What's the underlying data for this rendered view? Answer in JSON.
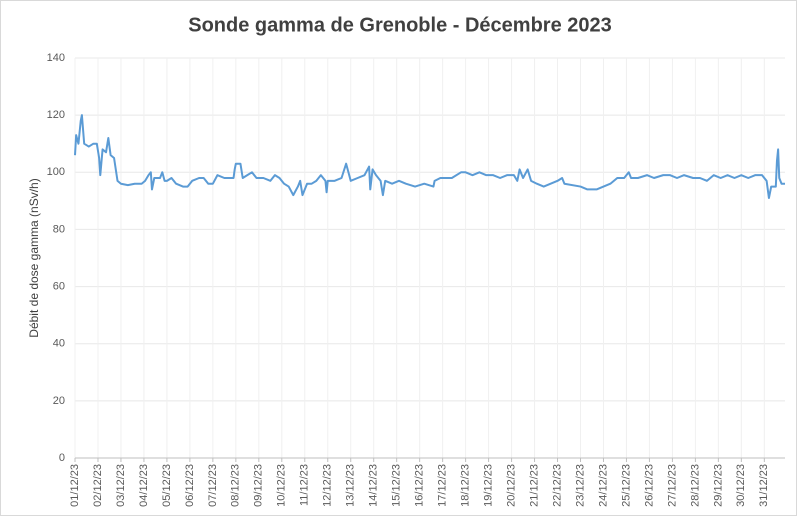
{
  "chart_data": {
    "type": "line",
    "title": "Sonde gamma de Grenoble - Décembre 2023",
    "y_label": "Débit de dose gamma (nSv/h)",
    "x": [
      0,
      0.05,
      0.15,
      0.25,
      0.3,
      0.4,
      0.6,
      0.8,
      0.95,
      1.05,
      1.1,
      1.2,
      1.35,
      1.45,
      1.55,
      1.7,
      1.85,
      2.0,
      2.3,
      2.6,
      2.9,
      3.05,
      3.2,
      3.3,
      3.35,
      3.45,
      3.7,
      3.8,
      3.9,
      4.0,
      4.2,
      4.4,
      4.7,
      4.9,
      5.1,
      5.4,
      5.6,
      5.8,
      6.0,
      6.2,
      6.5,
      6.9,
      6.95,
      7.0,
      7.2,
      7.3,
      7.5,
      7.7,
      7.9,
      8.0,
      8.2,
      8.5,
      8.7,
      8.9,
      9.1,
      9.3,
      9.5,
      9.7,
      9.8,
      9.9,
      10.1,
      10.3,
      10.5,
      10.7,
      10.9,
      10.95,
      11.0,
      11.3,
      11.6,
      11.8,
      11.9,
      12.0,
      12.3,
      12.6,
      12.8,
      12.85,
      12.95,
      13.1,
      13.3,
      13.4,
      13.5,
      13.8,
      14.1,
      14.4,
      14.8,
      15.2,
      15.6,
      15.65,
      15.9,
      16.1,
      16.4,
      16.8,
      17.0,
      17.3,
      17.6,
      17.9,
      18.2,
      18.5,
      18.8,
      19.1,
      19.25,
      19.35,
      19.5,
      19.7,
      19.85,
      20.1,
      20.4,
      20.7,
      21.0,
      21.2,
      21.3,
      22.0,
      22.3,
      22.7,
      23.0,
      23.3,
      23.6,
      23.9,
      24.1,
      24.2,
      24.5,
      24.9,
      25.2,
      25.6,
      25.9,
      26.2,
      26.5,
      26.9,
      27.2,
      27.5,
      27.8,
      28.1,
      28.4,
      28.7,
      29.0,
      29.3,
      29.6,
      29.9,
      30.1,
      30.2,
      30.3,
      30.5,
      30.55,
      30.6,
      30.65,
      30.75,
      30.9
    ],
    "series": [
      {
        "name": "Débit de dose gamma",
        "color": "#5b9bd5",
        "values": [
          106,
          113,
          110,
          118,
          120,
          110,
          109,
          110,
          110,
          105,
          99,
          108,
          107,
          112,
          106,
          105,
          97,
          96,
          95.5,
          96,
          96,
          97,
          99,
          100,
          94,
          98,
          98,
          100,
          97,
          97,
          98,
          96,
          95,
          95,
          97,
          98,
          98,
          96,
          96,
          99,
          98,
          98,
          101,
          103,
          103,
          98,
          99,
          100,
          98,
          98,
          98,
          97,
          99,
          98,
          96,
          95,
          92,
          95,
          97,
          92,
          96,
          96,
          97,
          99,
          97,
          93,
          97,
          97,
          98,
          103,
          100,
          97,
          98,
          99,
          102,
          94,
          101,
          99,
          97,
          92,
          97,
          96,
          97,
          96,
          95,
          96,
          95,
          97,
          98,
          98,
          98,
          100,
          100,
          99,
          100,
          99,
          99,
          98,
          99,
          99,
          97,
          101,
          98,
          101,
          97,
          96,
          95,
          96,
          97,
          98,
          96,
          95,
          94,
          94,
          95,
          96,
          98,
          98,
          100,
          98,
          98,
          99,
          98,
          99,
          99,
          98,
          99,
          98,
          98,
          97,
          99,
          98,
          99,
          98,
          99,
          98,
          99,
          99,
          97,
          91,
          95,
          95,
          104,
          108,
          98,
          96,
          96
        ]
      }
    ],
    "xlim": [
      0,
      30.9
    ],
    "xticks": [
      {
        "value": 0,
        "label": "01/12/23"
      },
      {
        "value": 1,
        "label": "02/12/23"
      },
      {
        "value": 2,
        "label": "03/12/23"
      },
      {
        "value": 3,
        "label": "04/12/23"
      },
      {
        "value": 4,
        "label": "05/12/23"
      },
      {
        "value": 5,
        "label": "06/12/23"
      },
      {
        "value": 6,
        "label": "07/12/23"
      },
      {
        "value": 7,
        "label": "08/12/23"
      },
      {
        "value": 8,
        "label": "09/12/23"
      },
      {
        "value": 9,
        "label": "10/12/23"
      },
      {
        "value": 10,
        "label": "11/12/23"
      },
      {
        "value": 11,
        "label": "12/12/23"
      },
      {
        "value": 12,
        "label": "13/12/23"
      },
      {
        "value": 13,
        "label": "14/12/23"
      },
      {
        "value": 14,
        "label": "15/12/23"
      },
      {
        "value": 15,
        "label": "16/12/23"
      },
      {
        "value": 16,
        "label": "17/12/23"
      },
      {
        "value": 17,
        "label": "18/12/23"
      },
      {
        "value": 18,
        "label": "19/12/23"
      },
      {
        "value": 19,
        "label": "20/12/23"
      },
      {
        "value": 20,
        "label": "21/12/23"
      },
      {
        "value": 21,
        "label": "22/12/23"
      },
      {
        "value": 22,
        "label": "23/12/23"
      },
      {
        "value": 23,
        "label": "24/12/23"
      },
      {
        "value": 24,
        "label": "25/12/23"
      },
      {
        "value": 25,
        "label": "26/12/23"
      },
      {
        "value": 26,
        "label": "27/12/23"
      },
      {
        "value": 27,
        "label": "28/12/23"
      },
      {
        "value": 28,
        "label": "29/12/23"
      },
      {
        "value": 29,
        "label": "30/12/23"
      },
      {
        "value": 30,
        "label": "31/12/23"
      }
    ],
    "ylim": [
      0,
      140
    ],
    "yticks": [
      0,
      20,
      40,
      60,
      80,
      100,
      120,
      140
    ],
    "grid": true
  }
}
